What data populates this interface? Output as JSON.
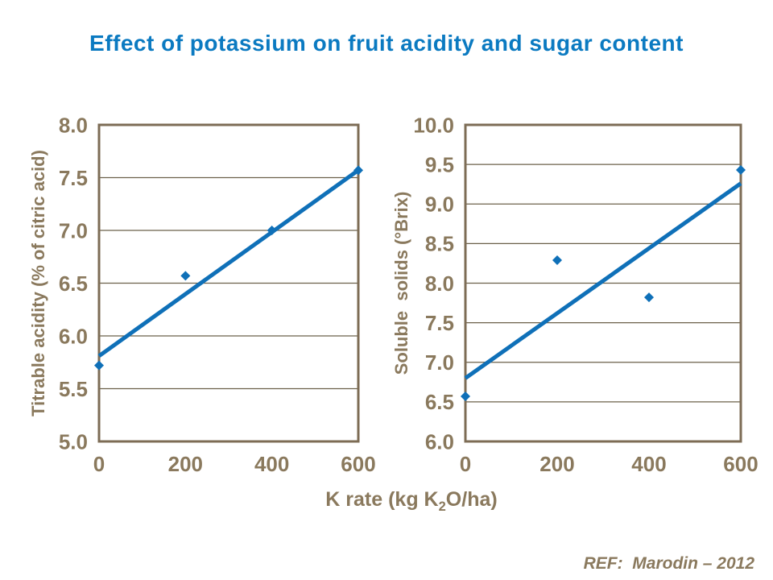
{
  "title": {
    "text": "Effect of potassium on fruit acidity and sugar content"
  },
  "reference": {
    "text": "REF:  Marodin – 2012"
  },
  "x_axis_label": {
    "pre": "K rate (kg K",
    "sub": "2",
    "post": "O/ha)",
    "full": "K rate (kg K2O/ha)"
  },
  "colors": {
    "title_blue": "#0b7ac1",
    "series_blue": "#0f70b8",
    "label_brown": "#8a795d",
    "frame_brown": "#7d6c55",
    "grid_brown": "#6b604a",
    "background": "#ffffff"
  },
  "chart_data": [
    {
      "type": "scatter",
      "name": "titrable-acidity-vs-k-rate",
      "title": "",
      "xlabel": "K rate (kg K2O/ha)",
      "ylabel": "Titrable acidity (% of citric acid)",
      "x": [
        0,
        200,
        400,
        600
      ],
      "y": [
        5.72,
        6.57,
        7.0,
        7.57
      ],
      "trend": {
        "type": "linear",
        "x": [
          0,
          600
        ],
        "y": [
          5.81,
          7.57
        ]
      },
      "xlim": [
        0,
        600
      ],
      "ylim": [
        5.0,
        8.0
      ],
      "grid": "horizontal",
      "legend": "none",
      "xticks": [
        {
          "value": 0,
          "label": "0"
        },
        {
          "value": 200,
          "label": "200"
        },
        {
          "value": 400,
          "label": "400"
        },
        {
          "value": 600,
          "label": "600"
        }
      ],
      "yticks": [
        {
          "value": 8.0,
          "label": "8.0"
        },
        {
          "value": 7.5,
          "label": "7.5"
        },
        {
          "value": 7.0,
          "label": "7.0"
        },
        {
          "value": 6.5,
          "label": "6.5"
        },
        {
          "value": 6.0,
          "label": "6.0"
        },
        {
          "value": 5.5,
          "label": "5.5"
        },
        {
          "value": 5.0,
          "label": "5.0"
        }
      ]
    },
    {
      "type": "scatter",
      "name": "soluble-solids-vs-k-rate",
      "title": "",
      "xlabel": "K rate (kg K2O/ha)",
      "ylabel": "Soluble  solids (°Brix)",
      "x": [
        0,
        200,
        400,
        600
      ],
      "y": [
        6.57,
        8.29,
        7.82,
        9.43
      ],
      "trend": {
        "type": "linear",
        "x": [
          0,
          600
        ],
        "y": [
          6.8,
          9.26
        ]
      },
      "xlim": [
        0,
        600
      ],
      "ylim": [
        6.0,
        10.0
      ],
      "grid": "horizontal",
      "legend": "none",
      "xticks": [
        {
          "value": 0,
          "label": "0"
        },
        {
          "value": 200,
          "label": "200"
        },
        {
          "value": 400,
          "label": "400"
        },
        {
          "value": 600,
          "label": "600"
        }
      ],
      "yticks": [
        {
          "value": 10.0,
          "label": "10.0"
        },
        {
          "value": 9.5,
          "label": "9.5"
        },
        {
          "value": 9.0,
          "label": "9.0"
        },
        {
          "value": 8.5,
          "label": "8.5"
        },
        {
          "value": 8.0,
          "label": "8.0"
        },
        {
          "value": 7.5,
          "label": "7.5"
        },
        {
          "value": 7.0,
          "label": "7.0"
        },
        {
          "value": 6.5,
          "label": "6.5"
        },
        {
          "value": 6.0,
          "label": "6.0"
        }
      ]
    }
  ]
}
